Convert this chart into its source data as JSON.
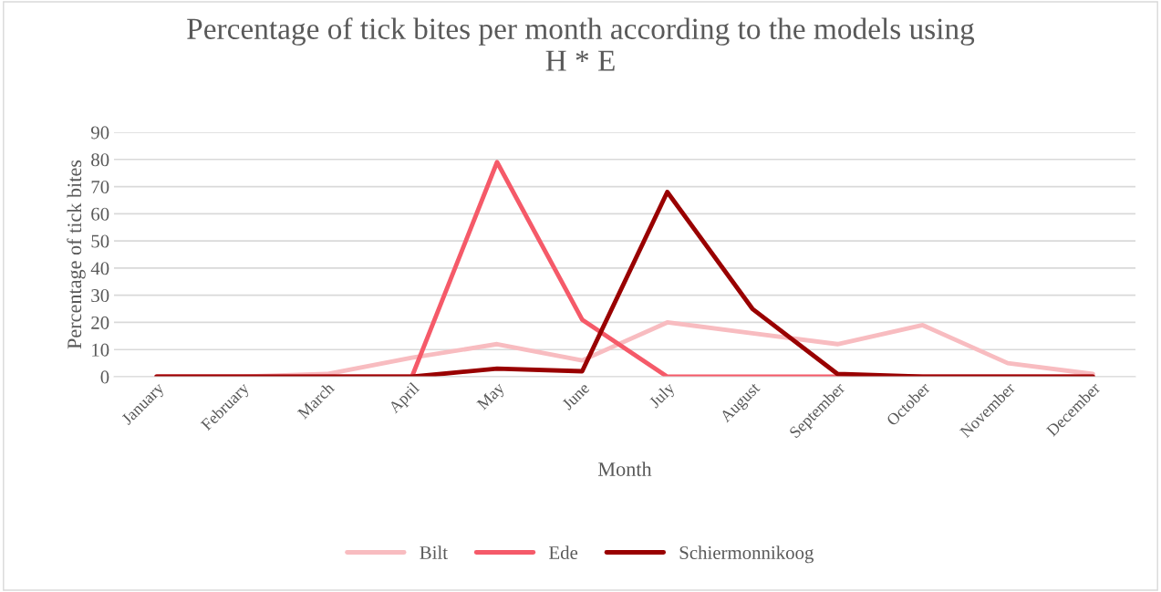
{
  "chart_data": {
    "type": "line",
    "title": "Percentage of tick bites per month according to the models using\nH * E",
    "xlabel": "Month",
    "ylabel": "Percentage of tick bites",
    "categories": [
      "January",
      "February",
      "March",
      "April",
      "May",
      "June",
      "July",
      "August",
      "September",
      "October",
      "November",
      "December"
    ],
    "series": [
      {
        "name": "Bilt",
        "color": "#f8bcc0",
        "values": [
          0,
          0,
          1,
          7,
          12,
          6,
          20,
          16,
          12,
          19,
          5,
          1
        ]
      },
      {
        "name": "Ede",
        "color": "#f55a69",
        "values": [
          0,
          0,
          0,
          0,
          79,
          21,
          0,
          0,
          0,
          0,
          0,
          0
        ]
      },
      {
        "name": "Schiermonnikoog",
        "color": "#990000",
        "values": [
          0,
          0,
          0,
          0,
          3,
          2,
          68,
          25,
          1,
          0,
          0,
          0
        ]
      }
    ],
    "ylim": [
      0,
      90
    ],
    "yticks": [
      0,
      10,
      20,
      30,
      40,
      50,
      60,
      70,
      80,
      90
    ],
    "grid": "y",
    "legend": "bottom",
    "marker": "none",
    "line_style": "solid"
  }
}
